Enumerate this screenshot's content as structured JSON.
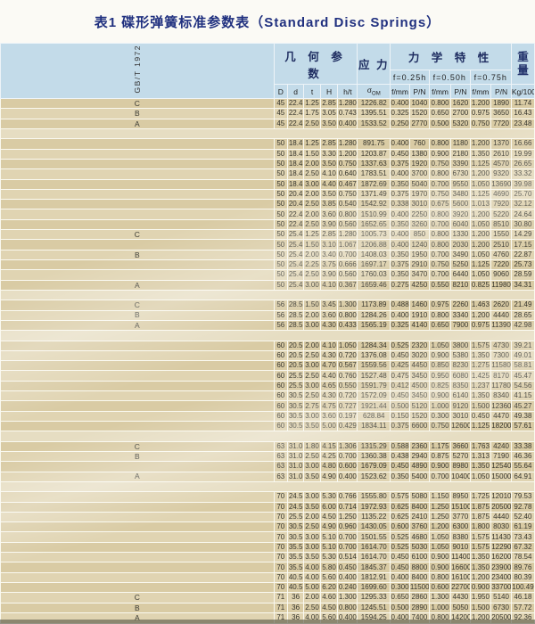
{
  "title": "表1 碟形弹簧标准参数表（Standard Disc Springs）",
  "standard_label": "GB/T 1972",
  "header": {
    "geometry": "几 何 参 数",
    "stress": "应 力",
    "mechanical": "力 学 特 性",
    "weight_top": "重",
    "weight_bottom": "量",
    "f025": "f=0.25h",
    "f050": "f=0.50h",
    "f075": "f=0.75h",
    "col_D": "D",
    "col_d": "d",
    "col_t": "t",
    "col_H": "H",
    "col_ht": "h/t",
    "col_sigma": "σ",
    "col_sigma_sub": "OM",
    "col_f": "f/mm",
    "col_p": "P/N",
    "col_w": "Kg/1000"
  },
  "colors": {
    "header_blue": "#c3dbe9",
    "row_dark": "#d9cba4",
    "row_light": "#e0d4b2",
    "separator": "#e6ddc2",
    "title_navy": "#20307f",
    "text_dark": "#35342c"
  },
  "rows": [
    [
      "C",
      "45",
      "22.4",
      "1.25",
      "2.85",
      "1.280",
      "1226.82",
      "0.400",
      "1040",
      "0.800",
      "1620",
      "1.200",
      "1890",
      "11.74"
    ],
    [
      "B",
      "45",
      "22.4",
      "1.75",
      "3.05",
      "0.743",
      "1395.51",
      "0.325",
      "1520",
      "0.650",
      "2700",
      "0.975",
      "3650",
      "16.43"
    ],
    [
      "A",
      "45",
      "22.4",
      "2.50",
      "3.50",
      "0.400",
      "1533.52",
      "0.250",
      "2770",
      "0.500",
      "5320",
      "0.750",
      "7720",
      "23.48"
    ],
    [],
    [
      "",
      "50",
      "18.4",
      "1.25",
      "2.85",
      "1.280",
      "891.75",
      "0.400",
      "760",
      "0.800",
      "1180",
      "1.200",
      "1370",
      "16.66"
    ],
    [
      "",
      "50",
      "18.4",
      "1.50",
      "3.30",
      "1.200",
      "1203.87",
      "0.450",
      "1380",
      "0.900",
      "2180",
      "1.350",
      "2610",
      "19.99"
    ],
    [
      "",
      "50",
      "18.4",
      "2.00",
      "3.50",
      "0.750",
      "1337.63",
      "0.375",
      "1920",
      "0.750",
      "3390",
      "1.125",
      "4570",
      "26.65"
    ],
    [
      "",
      "50",
      "18.4",
      "2.50",
      "4.10",
      "0.640",
      "1783.51",
      "0.400",
      "3700",
      "0.800",
      "6730",
      "1.200",
      "9320",
      "33.32"
    ],
    [
      "",
      "50",
      "18.4",
      "3.00",
      "4.40",
      "0.467",
      "1872.69",
      "0.350",
      "5040",
      "0.700",
      "9550",
      "1.050",
      "13690",
      "39.98"
    ],
    [
      "",
      "50",
      "20.4",
      "2.00",
      "3.50",
      "0.750",
      "1371.49",
      "0.375",
      "1970",
      "0.750",
      "3480",
      "1.125",
      "4690",
      "25.70"
    ],
    [
      "",
      "50",
      "20.4",
      "2.50",
      "3.85",
      "0.540",
      "1542.92",
      "0.338",
      "3010",
      "0.675",
      "5600",
      "1.013",
      "7920",
      "32.12"
    ],
    [
      "",
      "50",
      "22.4",
      "2.00",
      "3.60",
      "0.800",
      "1510.99",
      "0.400",
      "2250",
      "0.800",
      "3920",
      "1.200",
      "5220",
      "24.64"
    ],
    [
      "",
      "50",
      "22.4",
      "2.50",
      "3.90",
      "0.560",
      "1652.65",
      "0.350",
      "3260",
      "0.700",
      "6040",
      "1.050",
      "8510",
      "30.80"
    ],
    [
      "C",
      "50",
      "25.4",
      "1.25",
      "2.85",
      "1.280",
      "1005.73",
      "0.400",
      "850",
      "0.800",
      "1330",
      "1.200",
      "1550",
      "14.29"
    ],
    [
      "",
      "50",
      "25.4",
      "1.50",
      "3.10",
      "1.067",
      "1206.88",
      "0.400",
      "1240",
      "0.800",
      "2030",
      "1.200",
      "2510",
      "17.15"
    ],
    [
      "B",
      "50",
      "25.4",
      "2.00",
      "3.40",
      "0.700",
      "1408.03",
      "0.350",
      "1950",
      "0.700",
      "3490",
      "1.050",
      "4760",
      "22.87"
    ],
    [
      "",
      "50",
      "25.4",
      "2.25",
      "3.75",
      "0.666",
      "1697.17",
      "0.375",
      "2910",
      "0.750",
      "5250",
      "1.125",
      "7220",
      "25.73"
    ],
    [
      "",
      "50",
      "25.4",
      "2.50",
      "3.90",
      "0.560",
      "1760.03",
      "0.350",
      "3470",
      "0.700",
      "6440",
      "1.050",
      "9060",
      "28.59"
    ],
    [
      "A",
      "50",
      "25.4",
      "3.00",
      "4.10",
      "0.367",
      "1659.46",
      "0.275",
      "4250",
      "0.550",
      "8210",
      "0.825",
      "11980",
      "34.31"
    ],
    [],
    [
      "C",
      "56",
      "28.5",
      "1.50",
      "3.45",
      "1.300",
      "1173.89",
      "0.488",
      "1460",
      "0.975",
      "2260",
      "1.463",
      "2620",
      "21.49"
    ],
    [
      "B",
      "56",
      "28.5",
      "2.00",
      "3.60",
      "0.800",
      "1284.26",
      "0.400",
      "1910",
      "0.800",
      "3340",
      "1.200",
      "4440",
      "28.65"
    ],
    [
      "A",
      "56",
      "28.5",
      "3.00",
      "4.30",
      "0.433",
      "1565.19",
      "0.325",
      "4140",
      "0.650",
      "7900",
      "0.975",
      "11390",
      "42.98"
    ],
    [],
    [
      "",
      "60",
      "20.5",
      "2.00",
      "4.10",
      "1.050",
      "1284.34",
      "0.525",
      "2320",
      "1.050",
      "3800",
      "1.575",
      "4730",
      "39.21"
    ],
    [
      "",
      "60",
      "20.5",
      "2.50",
      "4.30",
      "0.720",
      "1376.08",
      "0.450",
      "3020",
      "0.900",
      "5380",
      "1.350",
      "7300",
      "49.01"
    ],
    [
      "",
      "60",
      "20.5",
      "3.00",
      "4.70",
      "0.567",
      "1559.56",
      "0.425",
      "4450",
      "0.850",
      "8230",
      "1.275",
      "11580",
      "58.81"
    ],
    [
      "",
      "60",
      "25.5",
      "2.50",
      "4.40",
      "0.760",
      "1527.48",
      "0.475",
      "3450",
      "0.950",
      "6080",
      "1.425",
      "8170",
      "45.47"
    ],
    [
      "",
      "60",
      "25.5",
      "3.00",
      "4.65",
      "0.550",
      "1591.79",
      "0.412",
      "4500",
      "0.825",
      "8350",
      "1.237",
      "11780",
      "54.56"
    ],
    [
      "",
      "60",
      "30.5",
      "2.50",
      "4.30",
      "0.720",
      "1572.09",
      "0.450",
      "3450",
      "0.900",
      "6140",
      "1.350",
      "8340",
      "41.15"
    ],
    [
      "",
      "60",
      "30.5",
      "2.75",
      "4.75",
      "0.727",
      "1921.44",
      "0.500",
      "5120",
      "1.000",
      "9120",
      "1.500",
      "12360",
      "45.27"
    ],
    [
      "",
      "60",
      "30.5",
      "3.00",
      "3.60",
      "0.197",
      "628.84",
      "0.150",
      "1520",
      "0.300",
      "3010",
      "0.450",
      "4470",
      "49.38"
    ],
    [
      "",
      "60",
      "30.5",
      "3.50",
      "5.00",
      "0.429",
      "1834.11",
      "0.375",
      "6600",
      "0.750",
      "12600",
      "1.125",
      "18200",
      "57.61"
    ],
    [],
    [
      "C",
      "63",
      "31.0",
      "1.80",
      "4.15",
      "1.306",
      "1315.29",
      "0.588",
      "2360",
      "1.175",
      "3660",
      "1.763",
      "4240",
      "33.38"
    ],
    [
      "B",
      "63",
      "31.0",
      "2.50",
      "4.25",
      "0.700",
      "1360.38",
      "0.438",
      "2940",
      "0.875",
      "5270",
      "1.313",
      "7190",
      "46.36"
    ],
    [
      "",
      "63",
      "31.0",
      "3.00",
      "4.80",
      "0.600",
      "1679.09",
      "0.450",
      "4890",
      "0.900",
      "8980",
      "1.350",
      "12540",
      "55.64"
    ],
    [
      "A",
      "63",
      "31.0",
      "3.50",
      "4.90",
      "0.400",
      "1523.62",
      "0.350",
      "5400",
      "0.700",
      "10400",
      "1.050",
      "15000",
      "64.91"
    ],
    [],
    [
      "",
      "70",
      "24.5",
      "3.00",
      "5.30",
      "0.766",
      "1555.80",
      "0.575",
      "5080",
      "1.150",
      "8950",
      "1.725",
      "12010",
      "79.53"
    ],
    [
      "",
      "70",
      "24.5",
      "3.50",
      "6.00",
      "0.714",
      "1972.93",
      "0.625",
      "8400",
      "1.250",
      "15100",
      "1.875",
      "20500",
      "92.78"
    ],
    [
      "",
      "70",
      "25.5",
      "2.00",
      "4.50",
      "1.250",
      "1135.22",
      "0.625",
      "2410",
      "1.250",
      "3770",
      "1.875",
      "4440",
      "52.40"
    ],
    [
      "",
      "70",
      "30.5",
      "2.50",
      "4.90",
      "0.960",
      "1430.05",
      "0.600",
      "3760",
      "1.200",
      "6300",
      "1.800",
      "8030",
      "61.19"
    ],
    [
      "",
      "70",
      "30.5",
      "3.00",
      "5.10",
      "0.700",
      "1501.55",
      "0.525",
      "4680",
      "1.050",
      "8380",
      "1.575",
      "11430",
      "73.43"
    ],
    [
      "",
      "70",
      "35.5",
      "3.00",
      "5.10",
      "0.700",
      "1614.70",
      "0.525",
      "5030",
      "1.050",
      "9010",
      "1.575",
      "12290",
      "67.32"
    ],
    [
      "",
      "70",
      "35.5",
      "3.50",
      "5.30",
      "0.514",
      "1614.70",
      "0.450",
      "6100",
      "0.900",
      "11400",
      "1.350",
      "16200",
      "78.54"
    ],
    [
      "",
      "70",
      "35.5",
      "4.00",
      "5.80",
      "0.450",
      "1845.37",
      "0.450",
      "8800",
      "0.900",
      "16600",
      "1.350",
      "23900",
      "89.76"
    ],
    [
      "",
      "70",
      "40.5",
      "4.00",
      "5.60",
      "0.400",
      "1812.91",
      "0.400",
      "8400",
      "0.800",
      "16100",
      "1.200",
      "23400",
      "80.39"
    ],
    [
      "",
      "70",
      "40.5",
      "5.00",
      "6.20",
      "0.240",
      "1699.60",
      "0.300",
      "11500",
      "0.600",
      "22700",
      "0.900",
      "33700",
      "100.49"
    ],
    [
      "C",
      "71",
      "36",
      "2.00",
      "4.60",
      "1.300",
      "1295.33",
      "0.650",
      "2860",
      "1.300",
      "4430",
      "1.950",
      "5140",
      "46.18"
    ],
    [
      "B",
      "71",
      "36",
      "2.50",
      "4.50",
      "0.800",
      "1245.51",
      "0.500",
      "2890",
      "1.000",
      "5050",
      "1.500",
      "6730",
      "57.72"
    ],
    [
      "A",
      "71",
      "36",
      "4.00",
      "5.60",
      "0.400",
      "1594.25",
      "0.400",
      "7400",
      "0.800",
      "14200",
      "1.200",
      "20500",
      "92.36"
    ]
  ]
}
